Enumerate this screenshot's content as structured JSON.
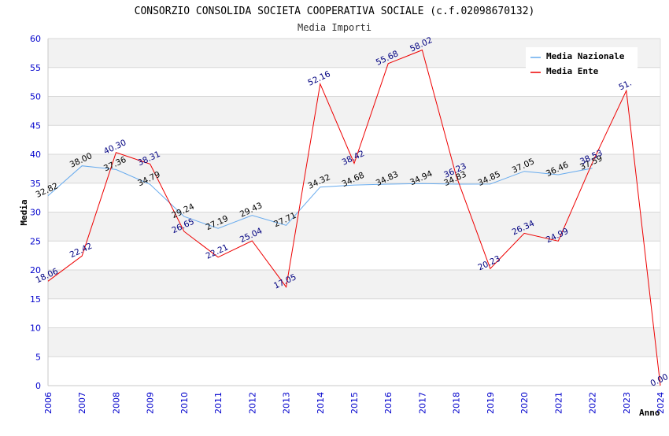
{
  "chart_data": {
    "type": "line",
    "title": "CONSORZIO CONSOLIDA SOCIETA COOPERATIVA SOCIALE (c.f.02098670132)",
    "subtitle": "Media Importi",
    "xlabel": "Anno",
    "ylabel": "Media",
    "ylim": [
      0,
      60
    ],
    "yticks": [
      "0",
      "5",
      "10",
      "15",
      "20",
      "25",
      "30",
      "35",
      "40",
      "45",
      "50",
      "55",
      "60"
    ],
    "categories": [
      "2006",
      "2007",
      "2008",
      "2009",
      "2010",
      "2011",
      "2012",
      "2013",
      "2014",
      "2015",
      "2016",
      "2017",
      "2018",
      "2019",
      "2020",
      "2021",
      "2022",
      "2023",
      "2024"
    ],
    "grid": true,
    "legend_position": "top-right",
    "series": [
      {
        "name": "Media Nazionale",
        "color": "#66aaee",
        "values": [
          32.82,
          38.0,
          37.36,
          34.79,
          29.24,
          27.19,
          29.43,
          27.71,
          34.32,
          34.68,
          34.83,
          34.94,
          34.83,
          34.85,
          37.05,
          36.46,
          37.59,
          null,
          null
        ],
        "labels": [
          "32.82",
          "38.00",
          "37.36",
          "34.79",
          "29.24",
          "27.19",
          "29.43",
          "27.71",
          "34.32",
          "34.68",
          "34.83",
          "34.94",
          "34.83",
          "34.85",
          "37.05",
          "36.46",
          "37.59",
          "",
          ""
        ]
      },
      {
        "name": "Media Ente",
        "color": "#ee0000",
        "values": [
          18.06,
          22.42,
          40.3,
          38.31,
          26.65,
          22.21,
          25.04,
          17.05,
          52.16,
          38.42,
          55.68,
          58.02,
          36.23,
          20.23,
          26.34,
          24.99,
          38.53,
          51.0,
          0.0
        ],
        "labels": [
          "18.06",
          "22.42",
          "40.30",
          "38.31",
          "26.65",
          "22.21",
          "25.04",
          "17.05",
          "52.16",
          "38.42",
          "55.68",
          "58.02",
          "36.23",
          "20.23",
          "26.34",
          "24.99",
          "38.53",
          "51.",
          "0.00"
        ]
      }
    ]
  }
}
